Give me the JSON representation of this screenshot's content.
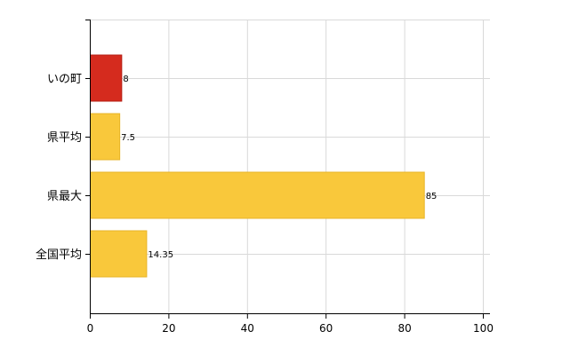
{
  "chart_data": {
    "type": "bar",
    "orientation": "horizontal",
    "categories": [
      "いの町",
      "県平均",
      "県最大",
      "全国平均"
    ],
    "values": [
      8,
      7.5,
      85,
      14.35
    ],
    "value_labels": [
      "8",
      "7.5",
      "85",
      "14.35"
    ],
    "bar_colors": [
      "#d52b1e",
      "#f9c83b",
      "#f9c83b",
      "#f9c83b"
    ],
    "bar_border_colors": [
      "#b51c12",
      "#e8b528",
      "#e8b528",
      "#e8b528"
    ],
    "xlim": [
      0,
      100
    ],
    "xticks": [
      0,
      20,
      40,
      60,
      80,
      100
    ],
    "grid": true,
    "title": "",
    "xlabel": "",
    "ylabel": ""
  }
}
